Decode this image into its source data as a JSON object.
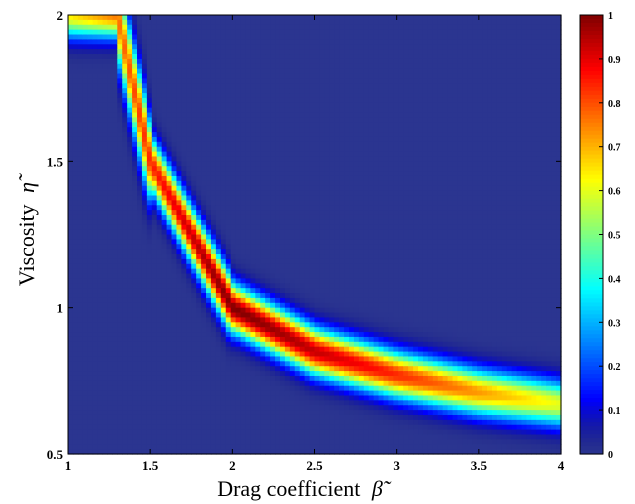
{
  "chart_data": {
    "type": "heatmap",
    "title": "",
    "xlabel": "Drag coefficient",
    "xlabel_symbol": "β̃",
    "ylabel": "Viscosity",
    "ylabel_symbol": "η̃",
    "xlim": [
      1,
      4
    ],
    "ylim": [
      0.5,
      2
    ],
    "x_ticks": [
      "1",
      "1.5",
      "2",
      "2.5",
      "3",
      "3.5",
      "4"
    ],
    "y_ticks": [
      "0.5",
      "1",
      "1.5",
      "2"
    ],
    "colorbar": {
      "range": [
        0,
        1
      ],
      "ticks": [
        "0",
        "0.1",
        "0.2",
        "0.3",
        "0.4",
        "0.5",
        "0.6",
        "0.7",
        "0.8",
        "0.9",
        "1"
      ],
      "colormap": "jet"
    },
    "ridge": {
      "description_points": [
        {
          "x": 1.3,
          "y": 2.0
        },
        {
          "x": 1.5,
          "y": 1.5
        },
        {
          "x": 2.0,
          "y": 1.0
        },
        {
          "x": 2.5,
          "y": 0.85
        },
        {
          "x": 3.0,
          "y": 0.77
        },
        {
          "x": 3.5,
          "y": 0.71
        },
        {
          "x": 4.0,
          "y": 0.67
        }
      ],
      "peak": {
        "x": 2.0,
        "y": 1.0,
        "value": 1.0
      },
      "end_value_at_x4": 0.6
    },
    "grid": false
  },
  "colors": {
    "background_low": "#2b3590",
    "peak": "#7a0000"
  }
}
